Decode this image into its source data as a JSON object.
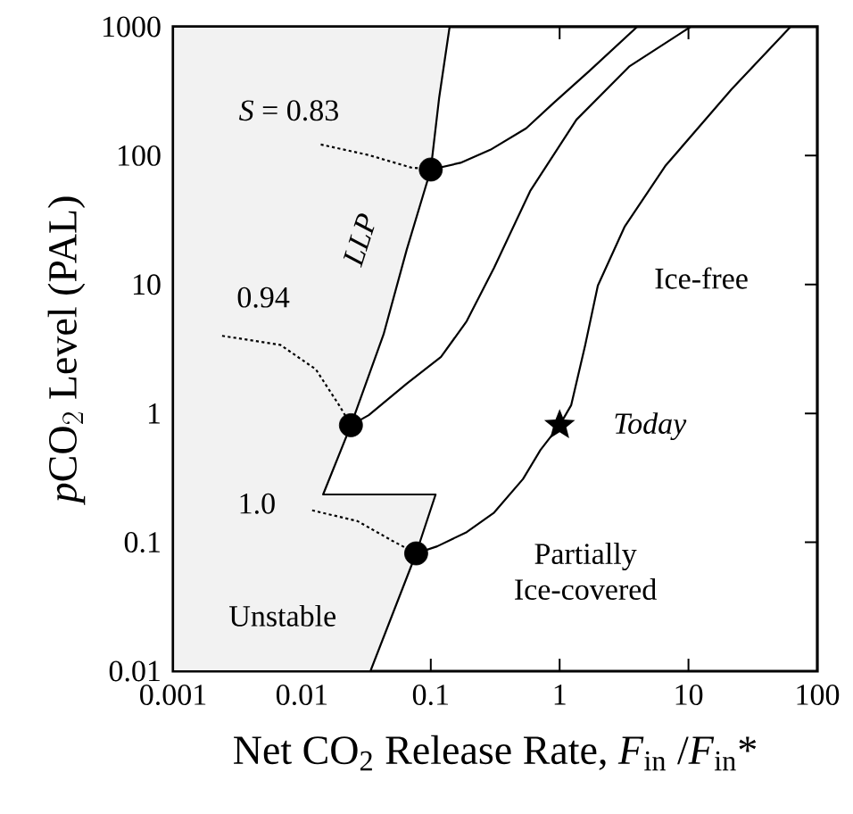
{
  "chart_data": {
    "type": "line",
    "log": "xy",
    "xlabel": "Net CO$_{2}$ Release Rate, *F*$_{in}$ /*F*$_{in}$*",
    "ylabel": "\\mathit{p}\\text{CO}_{2}\\text{ Level (PAL)}",
    "xlim": [
      0.001,
      100
    ],
    "ylim": [
      0.01,
      1000
    ],
    "xticks": [
      0.001,
      0.01,
      0.1,
      1,
      10,
      100
    ],
    "yticks": [
      0.01,
      0.1,
      1,
      10,
      100,
      1000
    ],
    "grid": false,
    "series": [
      {
        "type": "area",
        "color": "#f2f2f2",
        "x": [
          0.001,
          0.14,
          0.116,
          0.1,
          0.065,
          0.043,
          0.024,
          0.0146,
          0.109,
          0.077,
          0.034,
          0.001
        ],
        "values": [
          1000,
          1000,
          279,
          78,
          18.6,
          4.1,
          0.81,
          0.235,
          0.235,
          0.082,
          0.01,
          0.01
        ]
      },
      {
        "color": "#000000",
        "line_style": "solid",
        "x": [
          0.1,
          0.17,
          0.29,
          0.55,
          0.89,
          1.69,
          4.0,
          null,
          0.024,
          0.033,
          0.065,
          0.12,
          0.19,
          0.31,
          0.59,
          1.35,
          3.5,
          10.4,
          null,
          0.077,
          0.112,
          0.19,
          0.31,
          0.52,
          0.71,
          1.0,
          1.23,
          1.58,
          1.98,
          3.19,
          6.6,
          21.6,
          62
        ],
        "values": [
          78,
          88,
          111,
          163,
          254,
          451,
          1000,
          null,
          0.81,
          0.97,
          1.7,
          2.74,
          5.2,
          13.5,
          53,
          190,
          495,
          1000,
          null,
          0.082,
          0.093,
          0.12,
          0.17,
          0.31,
          0.52,
          0.81,
          1.16,
          3.4,
          9.8,
          28,
          83,
          327,
          1000
        ]
      },
      {
        "color": "#000000",
        "line_style": "dotted",
        "x": [
          0.014,
          0.033,
          0.07,
          0.1,
          null,
          0.0024,
          0.0068,
          0.0128,
          0.0194,
          0.024,
          null,
          0.012,
          0.027,
          0.05,
          0.077
        ],
        "values": [
          122,
          101,
          81,
          78,
          null,
          4.0,
          3.4,
          2.2,
          1.16,
          0.81,
          null,
          0.177,
          0.146,
          0.103,
          0.082
        ]
      },
      {
        "type": "scatter",
        "color": "#000000",
        "marker": "circle",
        "x": [
          0.1,
          0.024,
          0.077
        ],
        "values": [
          78,
          0.81,
          0.082
        ]
      },
      {
        "type": "scatter",
        "color": "#000000",
        "marker": "star",
        "x": [
          1.0
        ],
        "values": [
          0.81
        ]
      }
    ],
    "annotations": [
      "*S* = 0.83",
      "0.94",
      "1.0",
      "LLP",
      "Ice-free",
      "Today",
      "Partially Ice-covered",
      "Unstable"
    ]
  }
}
